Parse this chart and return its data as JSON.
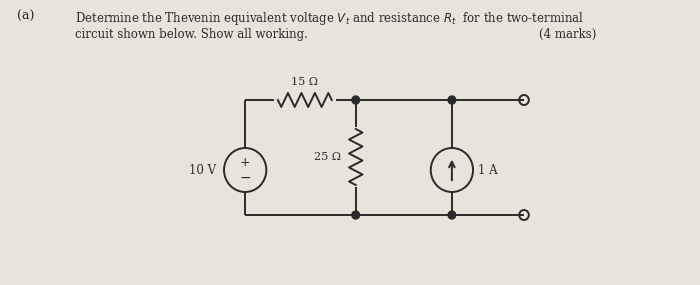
{
  "bg_color": "#e8e4dc",
  "line_color": "#2a2a2a",
  "label_15ohm": "15 Ω",
  "label_25ohm": "25 Ω",
  "label_10V": "10 V",
  "label_1A": "1 A",
  "fig_width": 7.0,
  "fig_height": 2.85
}
